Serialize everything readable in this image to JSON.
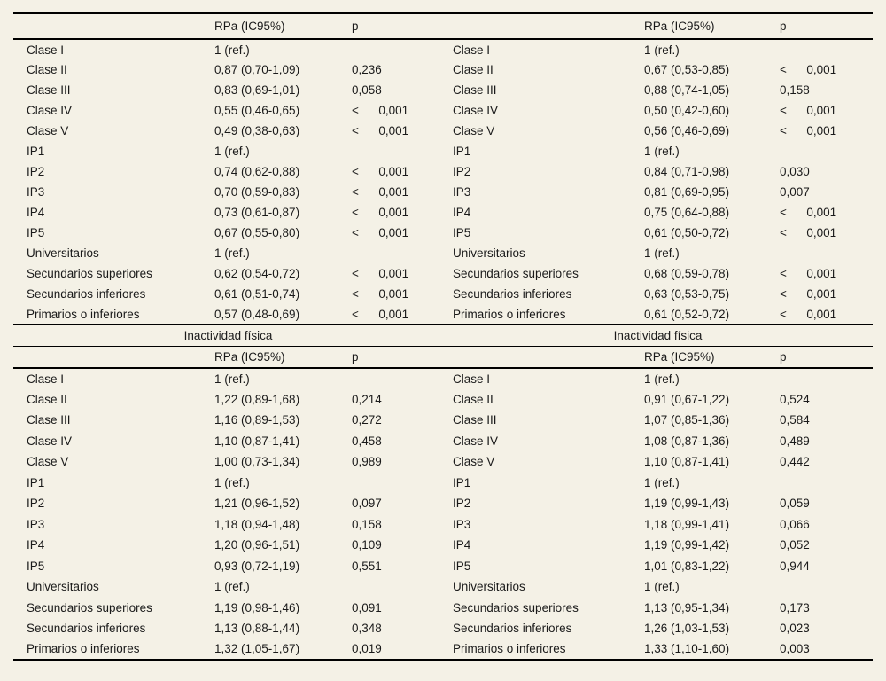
{
  "page": {
    "background_color": "#f4f1e6",
    "rule_color": "#000000",
    "text_color": "#1a1a1a"
  },
  "tables": [
    {
      "id": "top-table",
      "banners": [],
      "col_headers": [
        "",
        "RPa (IC95%)",
        "p",
        "",
        "RPa (IC95%)",
        "p"
      ],
      "rows": [
        [
          "Clase I",
          "1 (ref.)",
          "",
          "Clase I",
          "1 (ref.)",
          ""
        ],
        [
          "Clase II",
          "0,87 (0,70-1,09)",
          "0,236",
          "Clase II",
          "0,67 (0,53-0,85)",
          "<      0,001"
        ],
        [
          "Clase III",
          "0,83 (0,69-1,01)",
          "0,058",
          "Clase III",
          "0,88 (0,74-1,05)",
          "0,158"
        ],
        [
          "Clase IV",
          "0,55 (0,46-0,65)",
          "<      0,001",
          "Clase IV",
          "0,50 (0,42-0,60)",
          "<      0,001"
        ],
        [
          "Clase V",
          "0,49 (0,38-0,63)",
          "<      0,001",
          "Clase V",
          "0,56 (0,46-0,69)",
          "<      0,001"
        ],
        [
          "IP1",
          "1 (ref.)",
          "",
          "IP1",
          "1 (ref.)",
          ""
        ],
        [
          "IP2",
          "0,74 (0,62-0,88)",
          "<      0,001",
          "IP2",
          "0,84 (0,71-0,98)",
          "0,030"
        ],
        [
          "IP3",
          "0,70 (0,59-0,83)",
          "<      0,001",
          "IP3",
          "0,81 (0,69-0,95)",
          "0,007"
        ],
        [
          "IP4",
          "0,73 (0,61-0,87)",
          "<      0,001",
          "IP4",
          "0,75 (0,64-0,88)",
          "<      0,001"
        ],
        [
          "IP5",
          "0,67 (0,55-0,80)",
          "<      0,001",
          "IP5",
          "0,61 (0,50-0,72)",
          "<      0,001"
        ],
        [
          "Universitarios",
          "1 (ref.)",
          "",
          "Universitarios",
          "1 (ref.)",
          ""
        ],
        [
          "Secundarios superiores",
          "0,62 (0,54-0,72)",
          "<      0,001",
          "Secundarios superiores",
          "0,68 (0,59-0,78)",
          "<      0,001"
        ],
        [
          "Secundarios inferiores",
          "0,61 (0,51-0,74)",
          "<      0,001",
          "Secundarios inferiores",
          "0,63 (0,53-0,75)",
          "<      0,001"
        ],
        [
          "Primarios o inferiores",
          "0,57 (0,48-0,69)",
          "<      0,001",
          "Primarios o inferiores",
          "0,61 (0,52-0,72)",
          "<      0,001"
        ]
      ]
    },
    {
      "id": "inactividad-fisica-table",
      "banners": [
        "Inactividad física",
        "Inactividad física"
      ],
      "col_headers": [
        "",
        "RPa (IC95%)",
        "p",
        "",
        "RPa (IC95%)",
        "p"
      ],
      "rows": [
        [
          "Clase I",
          "1 (ref.)",
          "",
          "Clase I",
          "1 (ref.)",
          ""
        ],
        [
          "Clase II",
          "1,22 (0,89-1,68)",
          "0,214",
          "Clase II",
          "0,91 (0,67-1,22)",
          "0,524"
        ],
        [
          "Clase III",
          "1,16 (0,89-1,53)",
          "0,272",
          "Clase III",
          "1,07 (0,85-1,36)",
          "0,584"
        ],
        [
          "Clase IV",
          "1,10 (0,87-1,41)",
          "0,458",
          "Clase IV",
          "1,08 (0,87-1,36)",
          "0,489"
        ],
        [
          "Clase V",
          "1,00 (0,73-1,34)",
          "0,989",
          "Clase V",
          "1,10 (0,87-1,41)",
          "0,442"
        ],
        [
          "IP1",
          "1 (ref.)",
          "",
          "IP1",
          "1 (ref.)",
          ""
        ],
        [
          "IP2",
          "1,21 (0,96-1,52)",
          "0,097",
          "IP2",
          "1,19 (0,99-1,43)",
          "0,059"
        ],
        [
          "IP3",
          "1,18 (0,94-1,48)",
          "0,158",
          "IP3",
          "1,18 (0,99-1,41)",
          "0,066"
        ],
        [
          "IP4",
          "1,20 (0,96-1,51)",
          "0,109",
          "IP4",
          "1,19 (0,99-1,42)",
          "0,052"
        ],
        [
          "IP5",
          "0,93 (0,72-1,19)",
          "0,551",
          "IP5",
          "1,01 (0,83-1,22)",
          "0,944"
        ],
        [
          "Universitarios",
          "1 (ref.)",
          "",
          "Universitarios",
          "1 (ref.)",
          ""
        ],
        [
          "Secundarios superiores",
          "1,19 (0,98-1,46)",
          "0,091",
          "Secundarios superiores",
          "1,13 (0,95-1,34)",
          "0,173"
        ],
        [
          "Secundarios inferiores",
          "1,13 (0,88-1,44)",
          "0,348",
          "Secundarios inferiores",
          "1,26 (1,03-1,53)",
          "0,023"
        ],
        [
          "Primarios o inferiores",
          "1,32 (1,05-1,67)",
          "0,019",
          "Primarios o inferiores",
          "1,33 (1,10-1,60)",
          "0,003"
        ]
      ]
    }
  ]
}
